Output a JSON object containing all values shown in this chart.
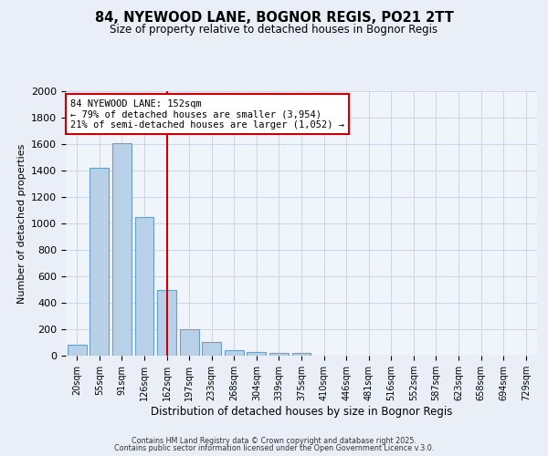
{
  "title1": "84, NYEWOOD LANE, BOGNOR REGIS, PO21 2TT",
  "title2": "Size of property relative to detached houses in Bognor Regis",
  "xlabel": "Distribution of detached houses by size in Bognor Regis",
  "ylabel": "Number of detached properties",
  "categories": [
    "20sqm",
    "55sqm",
    "91sqm",
    "126sqm",
    "162sqm",
    "197sqm",
    "233sqm",
    "268sqm",
    "304sqm",
    "339sqm",
    "375sqm",
    "410sqm",
    "446sqm",
    "481sqm",
    "516sqm",
    "552sqm",
    "587sqm",
    "623sqm",
    "658sqm",
    "694sqm",
    "729sqm"
  ],
  "values": [
    80,
    1420,
    1610,
    1050,
    500,
    200,
    105,
    40,
    25,
    20,
    20,
    0,
    0,
    0,
    0,
    0,
    0,
    0,
    0,
    0,
    0
  ],
  "bar_color": "#b8d0e8",
  "bar_edge_color": "#6aa0c8",
  "vline_x": 4,
  "vline_color": "#cc0000",
  "annotation_line1": "84 NYEWOOD LANE: 152sqm",
  "annotation_line2": "← 79% of detached houses are smaller (3,954)",
  "annotation_line3": "21% of semi-detached houses are larger (1,052) →",
  "annotation_box_color": "#ffffff",
  "annotation_box_edge": "#cc0000",
  "ylim": [
    0,
    2000
  ],
  "yticks": [
    0,
    200,
    400,
    600,
    800,
    1000,
    1200,
    1400,
    1600,
    1800,
    2000
  ],
  "footer1": "Contains HM Land Registry data © Crown copyright and database right 2025.",
  "footer2": "Contains public sector information licensed under the Open Government Licence v.3.0.",
  "bg_color": "#eaeff7",
  "plot_bg_color": "#f0f4fb",
  "grid_color": "#cdd5e3"
}
